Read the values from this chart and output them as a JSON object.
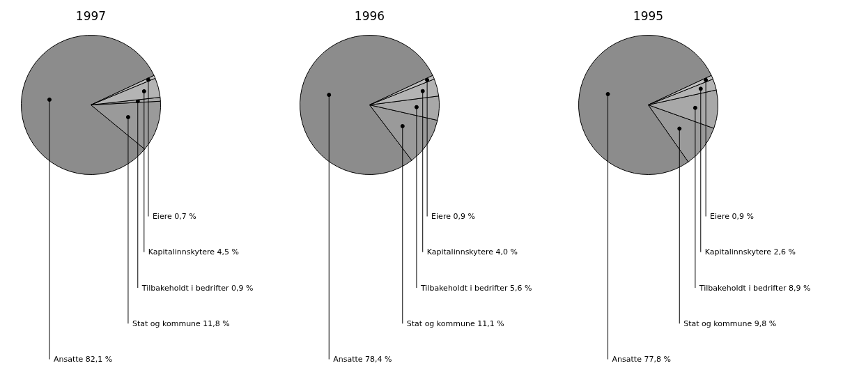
{
  "chart_data": [
    {
      "type": "pie",
      "title": "1997",
      "categories": [
        "Ansatte",
        "Stat og kommune",
        "Tilbakeholdt i bedrifter",
        "Kapitalinnskytere",
        "Eiere"
      ],
      "values": [
        82.1,
        11.8,
        0.9,
        4.5,
        0.7
      ],
      "value_labels": [
        "82,1 %",
        "11,8 %",
        "0,9 %",
        "4,5 %",
        "0,7 %"
      ],
      "colors": [
        "#8c8c8c",
        "#9a9a9a",
        "#a8a8a8",
        "#b4b4b4",
        "#c0c0c0"
      ]
    },
    {
      "type": "pie",
      "title": "1996",
      "categories": [
        "Ansatte",
        "Stat og kommune",
        "Tilbakeholdt i bedrifter",
        "Kapitalinnskytere",
        "Eiere"
      ],
      "values": [
        78.4,
        11.1,
        5.6,
        4.0,
        0.9
      ],
      "value_labels": [
        "78,4 %",
        "11,1 %",
        "5,6 %",
        "4,0 %",
        "0,9 %"
      ],
      "colors": [
        "#8c8c8c",
        "#9a9a9a",
        "#a8a8a8",
        "#b4b4b4",
        "#c0c0c0"
      ]
    },
    {
      "type": "pie",
      "title": "1995",
      "categories": [
        "Ansatte",
        "Stat og kommune",
        "Tilbakeholdt i bedrifter",
        "Kapitalinnskytere",
        "Eiere"
      ],
      "values": [
        77.8,
        9.8,
        8.9,
        2.6,
        0.9
      ],
      "value_labels": [
        "77,8 %",
        "9,8 %",
        "8,9 %",
        "2,6 %",
        "0,9 %"
      ],
      "colors": [
        "#8c8c8c",
        "#9a9a9a",
        "#a8a8a8",
        "#b4b4b4",
        "#c0c0c0"
      ]
    }
  ]
}
